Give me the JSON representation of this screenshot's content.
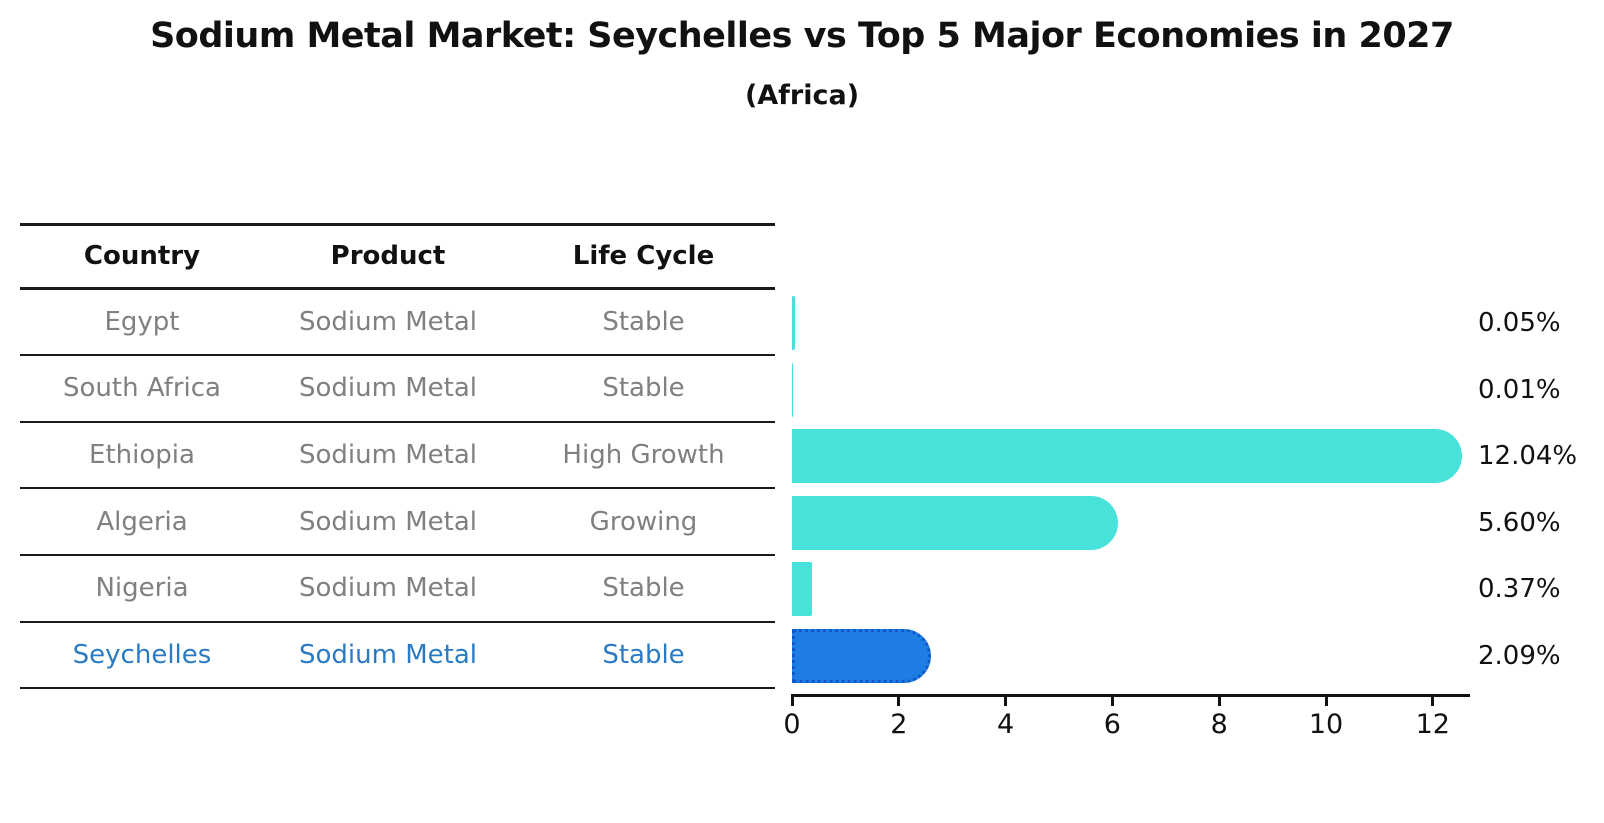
{
  "title": "Sodium Metal Market: Seychelles vs Top 5 Major Economies in 2027",
  "subtitle": "(Africa)",
  "table": {
    "headers": [
      "Country",
      "Product",
      "Life Cycle"
    ],
    "rows": [
      {
        "country": "Egypt",
        "product": "Sodium Metal",
        "life_cycle": "Stable",
        "highlight": false
      },
      {
        "country": "South Africa",
        "product": "Sodium Metal",
        "life_cycle": "Stable",
        "highlight": false
      },
      {
        "country": "Ethiopia",
        "product": "Sodium Metal",
        "life_cycle": "High Growth",
        "highlight": false
      },
      {
        "country": "Algeria",
        "product": "Sodium Metal",
        "life_cycle": "Growing",
        "highlight": false
      },
      {
        "country": "Nigeria",
        "product": "Sodium Metal",
        "life_cycle": "Stable",
        "highlight": false
      },
      {
        "country": "Seychelles",
        "product": "Sodium Metal",
        "life_cycle": "Stable",
        "highlight": true
      }
    ]
  },
  "chart_data": {
    "type": "bar",
    "orientation": "horizontal",
    "title": "Sodium Metal Market: Seychelles vs Top 5 Major Economies in 2027",
    "subtitle": "(Africa)",
    "categories": [
      "Egypt",
      "South Africa",
      "Ethiopia",
      "Algeria",
      "Nigeria",
      "Seychelles"
    ],
    "values": [
      0.05,
      0.01,
      12.04,
      5.6,
      0.37,
      2.09
    ],
    "value_labels": [
      "0.05%",
      "0.01%",
      "12.04%",
      "5.60%",
      "0.37%",
      "2.09%"
    ],
    "x_ticks": [
      "0",
      "2",
      "4",
      "6",
      "8",
      "10",
      "12"
    ],
    "x_tick_values": [
      0,
      2,
      4,
      6,
      8,
      10,
      12
    ],
    "xlim": [
      0,
      12.7
    ],
    "grid": false,
    "legend": "none",
    "highlight_category": "Seychelles",
    "colors": {
      "default_bar": "#47E3DA",
      "highlight_bar": "#1E7DE4",
      "highlight_border": "#1058C8",
      "highlight_text": "#2B7BC4",
      "table_text": "#808080",
      "heading_text": "#111111",
      "axis": "#111111"
    }
  }
}
